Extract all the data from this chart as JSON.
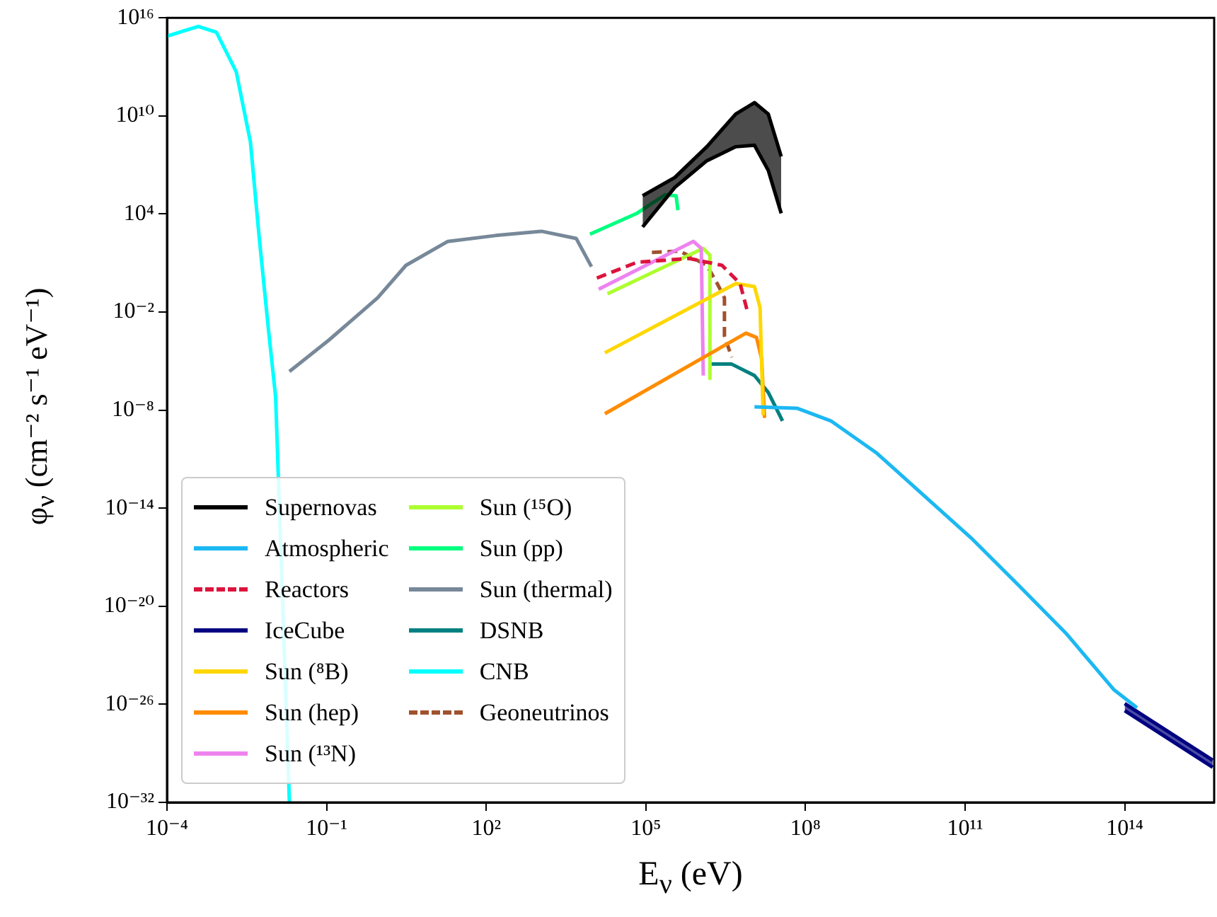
{
  "chart_data": {
    "type": "line",
    "xlabel": "E$_{ν}$ (eV)",
    "ylabel": "φ$_{ν}$ (cm⁻² s⁻¹ eV⁻¹)",
    "log": "xy",
    "legend": "bottom left",
    "xlim": [
      0.0001,
      4800000000000000.0
    ],
    "ylim": [
      1e-32,
      1e+16
    ],
    "xticks": [
      {
        "value": 0.0001,
        "label": "10⁻⁴"
      },
      {
        "value": 0.1,
        "label": "10⁻¹"
      },
      {
        "value": 100.0,
        "label": "10²"
      },
      {
        "value": 100000.0,
        "label": "10⁵"
      },
      {
        "value": 100000000.0,
        "label": "10⁸"
      },
      {
        "value": 100000000000.0,
        "label": "10¹¹"
      },
      {
        "value": 100000000000000.0,
        "label": "10¹⁴"
      }
    ],
    "yticks": [
      {
        "value": 1e-32,
        "label": "10⁻³²"
      },
      {
        "value": 1e-26,
        "label": "10⁻²⁶"
      },
      {
        "value": 1e-20,
        "label": "10⁻²⁰"
      },
      {
        "value": 1e-14,
        "label": "10⁻¹⁴"
      },
      {
        "value": 1e-08,
        "label": "10⁻⁸"
      },
      {
        "value": 0.01,
        "label": "10⁻²"
      },
      {
        "value": 10000.0,
        "label": "10⁴"
      },
      {
        "value": 10000000000.0,
        "label": "10¹⁰"
      },
      {
        "value": 1e+16,
        "label": "10¹⁶"
      }
    ],
    "series": [
      {
        "name": "Supernovas",
        "color": "#000000",
        "x": [
          87000.0,
          350000.0,
          1400000.0,
          4900000.0,
          11000000.0,
          20000000.0,
          35000000.0
        ],
        "values": [
          130000.0,
          1700000.0,
          130000000.0,
          13000000000.0,
          65000000000.0,
          13000000000.0,
          33000000.0
        ],
        "lower": [
          1600.0,
          420000.0,
          18000000.0,
          130000000.0,
          160000000.0,
          4600000.0,
          11000.0
        ],
        "upper": [
          130000.0,
          1700000.0,
          130000000.0,
          13000000000.0,
          65000000000.0,
          13000000000.0,
          33000000.0
        ]
      },
      {
        "color": "#000000",
        "x": [
          87000.0,
          350000.0,
          1400000.0,
          4900000.0,
          11000000.0,
          20000000.0,
          35000000.0
        ],
        "values": [
          1600.0,
          420000.0,
          18000000.0,
          130000000.0,
          160000000.0,
          4600000.0,
          11000.0
        ]
      },
      {
        "name": "Atmospheric",
        "color": "#1cb8f2",
        "x": [
          11000000.0,
          69000000.0,
          300000000.0,
          2200000000.0,
          17000000000.0,
          130000000000.0,
          1000000000000.0,
          7800000000000.0,
          62000000000000.0,
          170000000000000.0
        ],
        "values": [
          1.6e-08,
          1.3e-08,
          2.2e-09,
          2.3e-11,
          5.8e-14,
          1.5e-16,
          2e-19,
          2.3e-22,
          8.1e-26,
          6.2e-27
        ]
      },
      {
        "name": "Reactors",
        "color": "#dc143c",
        "line_style": "dashed",
        "x": [
          12000.0,
          68000.0,
          650000.0,
          2700000.0,
          5900000.0,
          7900000.0
        ],
        "values": [
          1.2,
          11,
          19,
          7.2,
          0.55,
          0.015
        ]
      },
      {
        "name": "IceCube",
        "color": "#000080",
        "x": [
          100000000000000.0,
          4500000000000000.0
        ],
        "values": [
          1.1e-26,
          3.8e-30
        ],
        "lower": [
          4.1e-27,
          1.4e-30
        ],
        "upper": [
          1.1e-26,
          3.8e-30
        ]
      },
      {
        "color": "#000080",
        "x": [
          100000000000000.0,
          4500000000000000.0
        ],
        "values": [
          4.1e-27,
          1.4e-30
        ]
      },
      {
        "name": "Sun (⁸B)",
        "color": "#ffd700",
        "x": [
          17000.0,
          4900000.0,
          11000000.0,
          14000000.0,
          16000000.0
        ],
        "values": [
          3.2e-05,
          0.55,
          0.36,
          0.019,
          4.9e-09
        ]
      },
      {
        "name": "Sun (hep)",
        "color": "#ff8c00",
        "x": [
          17000.0,
          7600000.0,
          12000000.0,
          15000000.0,
          17000000.0
        ],
        "values": [
          6e-09,
          0.00051,
          0.00028,
          1.4e-05,
          3.3e-09
        ]
      },
      {
        "name": "Sun (¹³N)",
        "color": "#ee82ee",
        "x": [
          13000.0,
          780000.0,
          1100000.0,
          1200000.0
        ],
        "values": [
          0.25,
          210,
          79,
          1.3e-06
        ]
      },
      {
        "name": "Sun (¹⁵O)",
        "color": "#adff2f",
        "x": [
          19000.0,
          1200000.0,
          1600000.0,
          1600000.0
        ],
        "values": [
          0.13,
          79,
          30,
          8.7e-07
        ]
      },
      {
        "name": "Sun (pp)",
        "color": "#00ff7f",
        "x": [
          8900,
          68000.0,
          230000.0,
          370000.0,
          400000.0
        ],
        "values": [
          580,
          11000.0,
          150000.0,
          130000.0,
          17000.0
        ]
      },
      {
        "name": "Sun (thermal)",
        "color": "#778899",
        "x": [
          0.02,
          0.11,
          0.91,
          3.1,
          19,
          150,
          1100,
          4900,
          9500
        ],
        "values": [
          2.3e-06,
          0.00019,
          0.074,
          7.2,
          210,
          480,
          870,
          320,
          6
        ]
      },
      {
        "name": "DSNB",
        "color": "#008080",
        "x": [
          1700000.0,
          4100000.0,
          11000000.0,
          20000000.0,
          37000000.0
        ],
        "values": [
          6.5e-06,
          6.5e-06,
          1.3e-06,
          1.2e-07,
          2.2e-09
        ]
      },
      {
        "name": "CNB",
        "color": "#00ffff",
        "x": [
          0.0001,
          0.00039,
          0.00085,
          0.002,
          0.0037,
          0.0054,
          0.0081,
          0.011,
          0.02
        ],
        "values": [
          760000000000000.0,
          3000000000000000.0,
          1300000000000000.0,
          5100000000000.0,
          250000000.0,
          390.0,
          0.00076,
          6.6e-08,
          1e-32
        ]
      },
      {
        "name": "Geoneutrinos",
        "color": "#a0522d",
        "line_style": "dashed",
        "x": [
          130000.0,
          430000.0,
          1400000.0,
          2200000.0,
          3000000.0,
          3000000.0,
          4100000.0
        ],
        "values": [
          44,
          54,
          7.2,
          0.55,
          0.074,
          0.00035,
          1.7e-05
        ]
      }
    ]
  }
}
